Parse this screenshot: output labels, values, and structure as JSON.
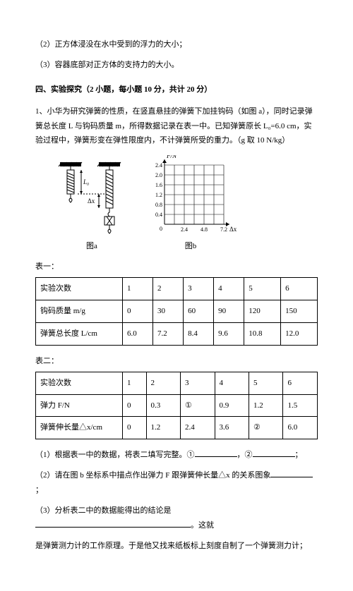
{
  "q2": "（2）正方体浸没在水中受到的浮力的大小；",
  "q3": "（3）容器底部对正方体的支持力的大小。",
  "section4": "四、实验探究（2 小题，每小题 10 分，共计 20 分）",
  "p1_intro": "1、小华为研究弹簧的性质，在竖直悬挂的弹簧下加挂钩码（如图 a），同时记录弹簧总长度 L 与钩码质量 m，所得数据记录在表一中。已知弹簧原长 L₀=6.0 cm，实验过程中，弹簧形变在弹性限度内，不计弹簧所受的重力。（g 取 10 N/kg）",
  "fig_a_label": "图a",
  "fig_b_label": "图b",
  "chart": {
    "y_label": "F/N",
    "x_label": "Δx/cm",
    "y_ticks": [
      "2.4",
      "2.0",
      "1.6",
      "1.2",
      "0.8",
      "0.4"
    ],
    "x_ticks": [
      "2.4",
      "4.8",
      "7.2"
    ],
    "grid_color": "#000000",
    "bg": "#ffffff"
  },
  "table1_label": "表一：",
  "table1": {
    "rows": [
      [
        "实验次数",
        "1",
        "2",
        "3",
        "4",
        "5",
        "6"
      ],
      [
        "钩码质量 m/g",
        "0",
        "30",
        "60",
        "90",
        "120",
        "150"
      ],
      [
        "弹簧总长度 L/cm",
        "6.0",
        "7.2",
        "8.4",
        "9.6",
        "10.8",
        "12.0"
      ]
    ]
  },
  "table2_label": "表二：",
  "table2": {
    "rows": [
      [
        "实验次数",
        "1",
        "2",
        "3",
        "4",
        "5",
        "6"
      ],
      [
        "弹力 F/N",
        "0",
        "0.3",
        "①",
        "0.9",
        "1.2",
        "1.5"
      ],
      [
        "弹簧伸长量△x/cm",
        "0",
        "1.2",
        "2.4",
        "3.6",
        "②",
        "6.0"
      ]
    ]
  },
  "sub1_a": "（1）根据表一中的数据，将表二填写完整。①",
  "sub1_b": "，②",
  "sub1_c": "；",
  "sub2_a": "（2）请在图 b 坐标系中描点作出弹力 F 跟弹簧伸长量△x 的关系图象",
  "sub2_b": "；",
  "sub3_a": "（3）分析表二中的数据能得出的结论是",
  "sub3_b": "。这就",
  "sub3_c": "是弹簧测力计的工作原理。于是他又找来纸板标上刻度自制了一个弹簧测力计；"
}
